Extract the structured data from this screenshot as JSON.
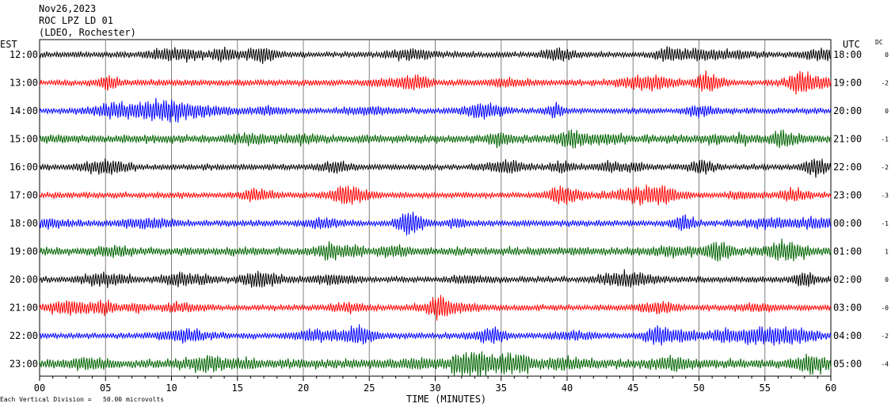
{
  "header": {
    "date": "Nov26,2023",
    "station": "ROC LPZ LD 01",
    "location": "(LDEO, Rochester)"
  },
  "left_axis_title": "EST",
  "right_axis_title": "UTC",
  "dc_title": "DC",
  "footer": {
    "note": "Each Vertical Division =   50.00 microvolts"
  },
  "colors": {
    "trace_cycle": [
      "#000000",
      "#ff0000",
      "#0000ff",
      "#006400"
    ],
    "grid": "#000000",
    "background": "#ffffff"
  },
  "chart_data": {
    "type": "line",
    "title": "",
    "xlabel": "TIME (MINUTES)",
    "ylabel": "",
    "xlim": [
      0,
      60
    ],
    "x_ticks": [
      "00",
      "05",
      "10",
      "15",
      "20",
      "25",
      "30",
      "35",
      "40",
      "45",
      "50",
      "55",
      "60"
    ],
    "vertical_division_microvolts": 50.0,
    "grid": true,
    "rows": [
      {
        "est": "12:00",
        "utc": "18:00",
        "dc": "0",
        "color": "#000000"
      },
      {
        "est": "13:00",
        "utc": "19:00",
        "dc": "-2",
        "color": "#ff0000"
      },
      {
        "est": "14:00",
        "utc": "20:00",
        "dc": "0",
        "color": "#0000ff"
      },
      {
        "est": "15:00",
        "utc": "21:00",
        "dc": "-1",
        "color": "#006400"
      },
      {
        "est": "16:00",
        "utc": "22:00",
        "dc": "-2",
        "color": "#000000"
      },
      {
        "est": "17:00",
        "utc": "23:00",
        "dc": "-3",
        "color": "#ff0000"
      },
      {
        "est": "18:00",
        "utc": "00:00",
        "dc": "-1",
        "color": "#0000ff"
      },
      {
        "est": "19:00",
        "utc": "01:00",
        "dc": "1",
        "color": "#006400"
      },
      {
        "est": "20:00",
        "utc": "02:00",
        "dc": "0",
        "color": "#000000"
      },
      {
        "est": "21:00",
        "utc": "03:00",
        "dc": "-0",
        "color": "#ff0000"
      },
      {
        "est": "22:00",
        "utc": "04:00",
        "dc": "-2",
        "color": "#0000ff"
      },
      {
        "est": "23:00",
        "utc": "05:00",
        "dc": "-4",
        "color": "#006400"
      }
    ]
  }
}
